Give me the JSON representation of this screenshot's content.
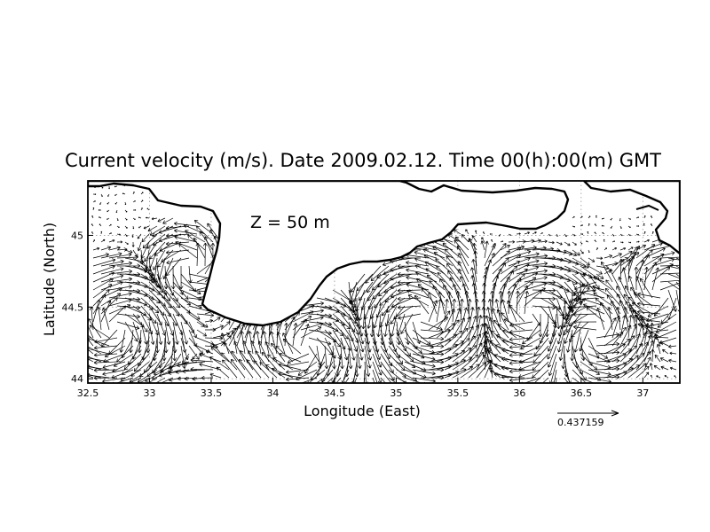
{
  "figure": {
    "title": "Current velocity (m/s). Date 2009.02.12. Time 00(h):00(m) GMT",
    "xlabel": "Longitude (East)",
    "ylabel": "Latitude (North)",
    "depth_label": "Z = 50 m",
    "reference_vector": "0.437159",
    "x_ticks": [
      "32.5",
      "33",
      "33.5",
      "34",
      "34.5",
      "35",
      "35.5",
      "36",
      "36.5",
      "37"
    ],
    "y_ticks": [
      "44",
      "44.5",
      "45"
    ]
  },
  "map_extent": {
    "lon_min": 32.5,
    "lon_max": 37.3,
    "lat_min": 43.97,
    "lat_max": 45.38
  },
  "map_style": {
    "grid": "dotted",
    "coastline_color": "#000000",
    "vector_color": "#000000",
    "background": "#ffffff"
  }
}
